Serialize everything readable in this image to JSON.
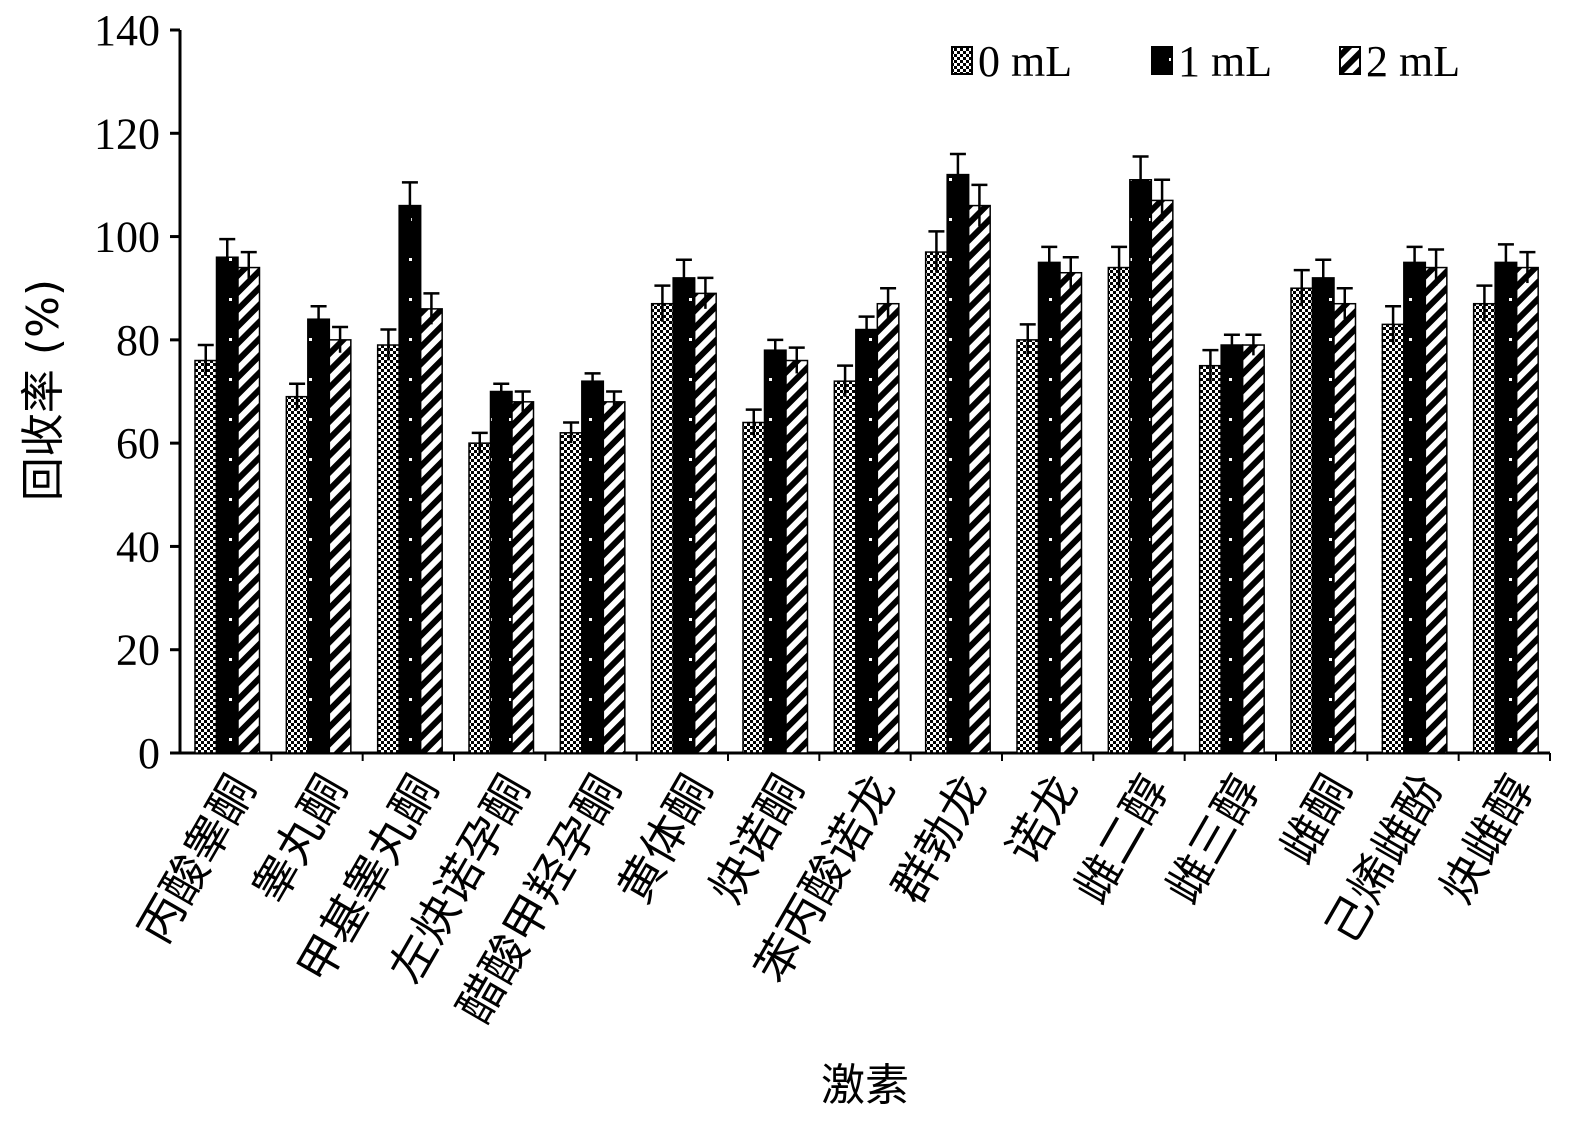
{
  "chart_data": {
    "type": "bar",
    "xlabel": "激素",
    "ylabel": "回收率 (%)",
    "ylim": [
      0,
      140
    ],
    "yticks": [
      0,
      20,
      40,
      60,
      80,
      100,
      120,
      140
    ],
    "grid": false,
    "legend_position": "top-right",
    "categories": [
      "丙酸睾酮",
      "睾丸酮",
      "甲基睾丸酮",
      "左炔诺孕酮",
      "醋酸甲羟孕酮",
      "黄体酮",
      "炔诺酮",
      "苯丙酸诺龙",
      "群勃龙",
      "诺龙",
      "雌二醇",
      "雌三醇",
      "雌酮",
      "己烯雌酚",
      "炔雌醇"
    ],
    "series": [
      {
        "name": "0 mL",
        "pattern": "checker",
        "values": [
          76,
          69,
          79,
          60,
          62,
          87,
          64,
          72,
          97,
          80,
          94,
          75,
          90,
          83,
          87
        ],
        "errors": [
          3,
          2.5,
          3,
          2,
          2,
          3.5,
          2.5,
          3,
          4,
          3,
          4,
          3,
          3.5,
          3.5,
          3.5
        ]
      },
      {
        "name": "1 mL",
        "pattern": "solid",
        "values": [
          96,
          84,
          106,
          70,
          72,
          92,
          78,
          82,
          112,
          95,
          111,
          79,
          92,
          95,
          95
        ],
        "errors": [
          3.5,
          2.5,
          4.5,
          1.5,
          1.5,
          3.5,
          2,
          2.5,
          4,
          3,
          4.5,
          2,
          3.5,
          3,
          3.5
        ]
      },
      {
        "name": "2 mL",
        "pattern": "diagonal",
        "values": [
          94,
          80,
          86,
          68,
          68,
          89,
          76,
          87,
          106,
          93,
          107,
          79,
          87,
          94,
          94
        ],
        "errors": [
          3,
          2.5,
          3,
          2,
          2,
          3,
          2.5,
          3,
          4,
          3,
          4,
          2,
          3,
          3.5,
          3
        ]
      }
    ]
  },
  "colors": {
    "ink": "#000000",
    "background": "#ffffff"
  }
}
